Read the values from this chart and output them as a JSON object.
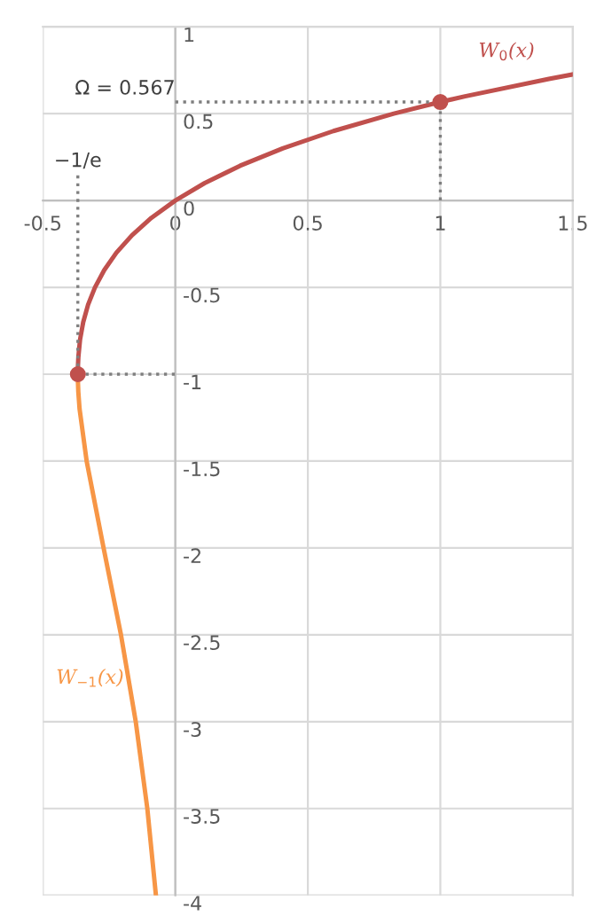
{
  "chart_data": {
    "type": "line",
    "xlim": [
      -0.5,
      1.5
    ],
    "xticks": [
      -0.5,
      0,
      0.5,
      1,
      1.5
    ],
    "ylim": [
      -4,
      1
    ],
    "yticks": [
      -4,
      -3.5,
      -3,
      -2.5,
      -2,
      -1.5,
      -1,
      -0.5,
      0,
      0.5,
      1
    ],
    "grid": true,
    "legend": false,
    "series": [
      {
        "name": "W$_{0}$(x)",
        "color": "#c0504d",
        "x": [
          -0.3679,
          -0.3674,
          -0.3659,
          -0.3595,
          -0.3476,
          -0.3293,
          -0.3033,
          -0.2681,
          -0.2222,
          -0.1637,
          -0.0905,
          0,
          0.1105,
          0.2443,
          0.405,
          0.5967,
          0.8244,
          1.0,
          1.0933,
          1.4096,
          1.5
        ],
        "values": [
          -1,
          -0.95,
          -0.9,
          -0.8,
          -0.7,
          -0.6,
          -0.5,
          -0.4,
          -0.3,
          -0.2,
          -0.1,
          0,
          0.1,
          0.2,
          0.3,
          0.4,
          0.5,
          0.567,
          0.6,
          0.7,
          0.726
        ]
      },
      {
        "name": "W$_{−1}$(x)",
        "color": "#f79646",
        "x": [
          -0.3679,
          -0.3674,
          -0.3662,
          -0.3614,
          -0.3347,
          -0.2707,
          -0.2052,
          -0.1494,
          -0.1057,
          -0.0733
        ],
        "values": [
          -1,
          -1.05,
          -1.1,
          -1.2,
          -1.5,
          -2,
          -2.5,
          -3,
          -3.5,
          -4
        ]
      },
      {
        "type": "scatter",
        "color": "#c0504d",
        "marker": "circle",
        "x": [
          -0.3679,
          1
        ],
        "values": [
          -1,
          0.567
        ]
      },
      {
        "color": "#7f7f7f",
        "line_style": "dotted",
        "x": [
          -0.3679,
          -0.3679
        ],
        "values": [
          -1,
          0.15
        ]
      },
      {
        "color": "#7f7f7f",
        "line_style": "dotted",
        "x": [
          -0.3679,
          0
        ],
        "values": [
          -1,
          -1
        ]
      },
      {
        "color": "#7f7f7f",
        "line_style": "dotted",
        "x": [
          0,
          1,
          1
        ],
        "values": [
          0.567,
          0.567,
          0
        ]
      }
    ],
    "annotations": [
      {
        "text": "Ω = 0.567",
        "x": 0,
        "y": 0.567
      },
      {
        "text": "−1/e",
        "x": -0.3679,
        "y": 0.15
      }
    ]
  }
}
